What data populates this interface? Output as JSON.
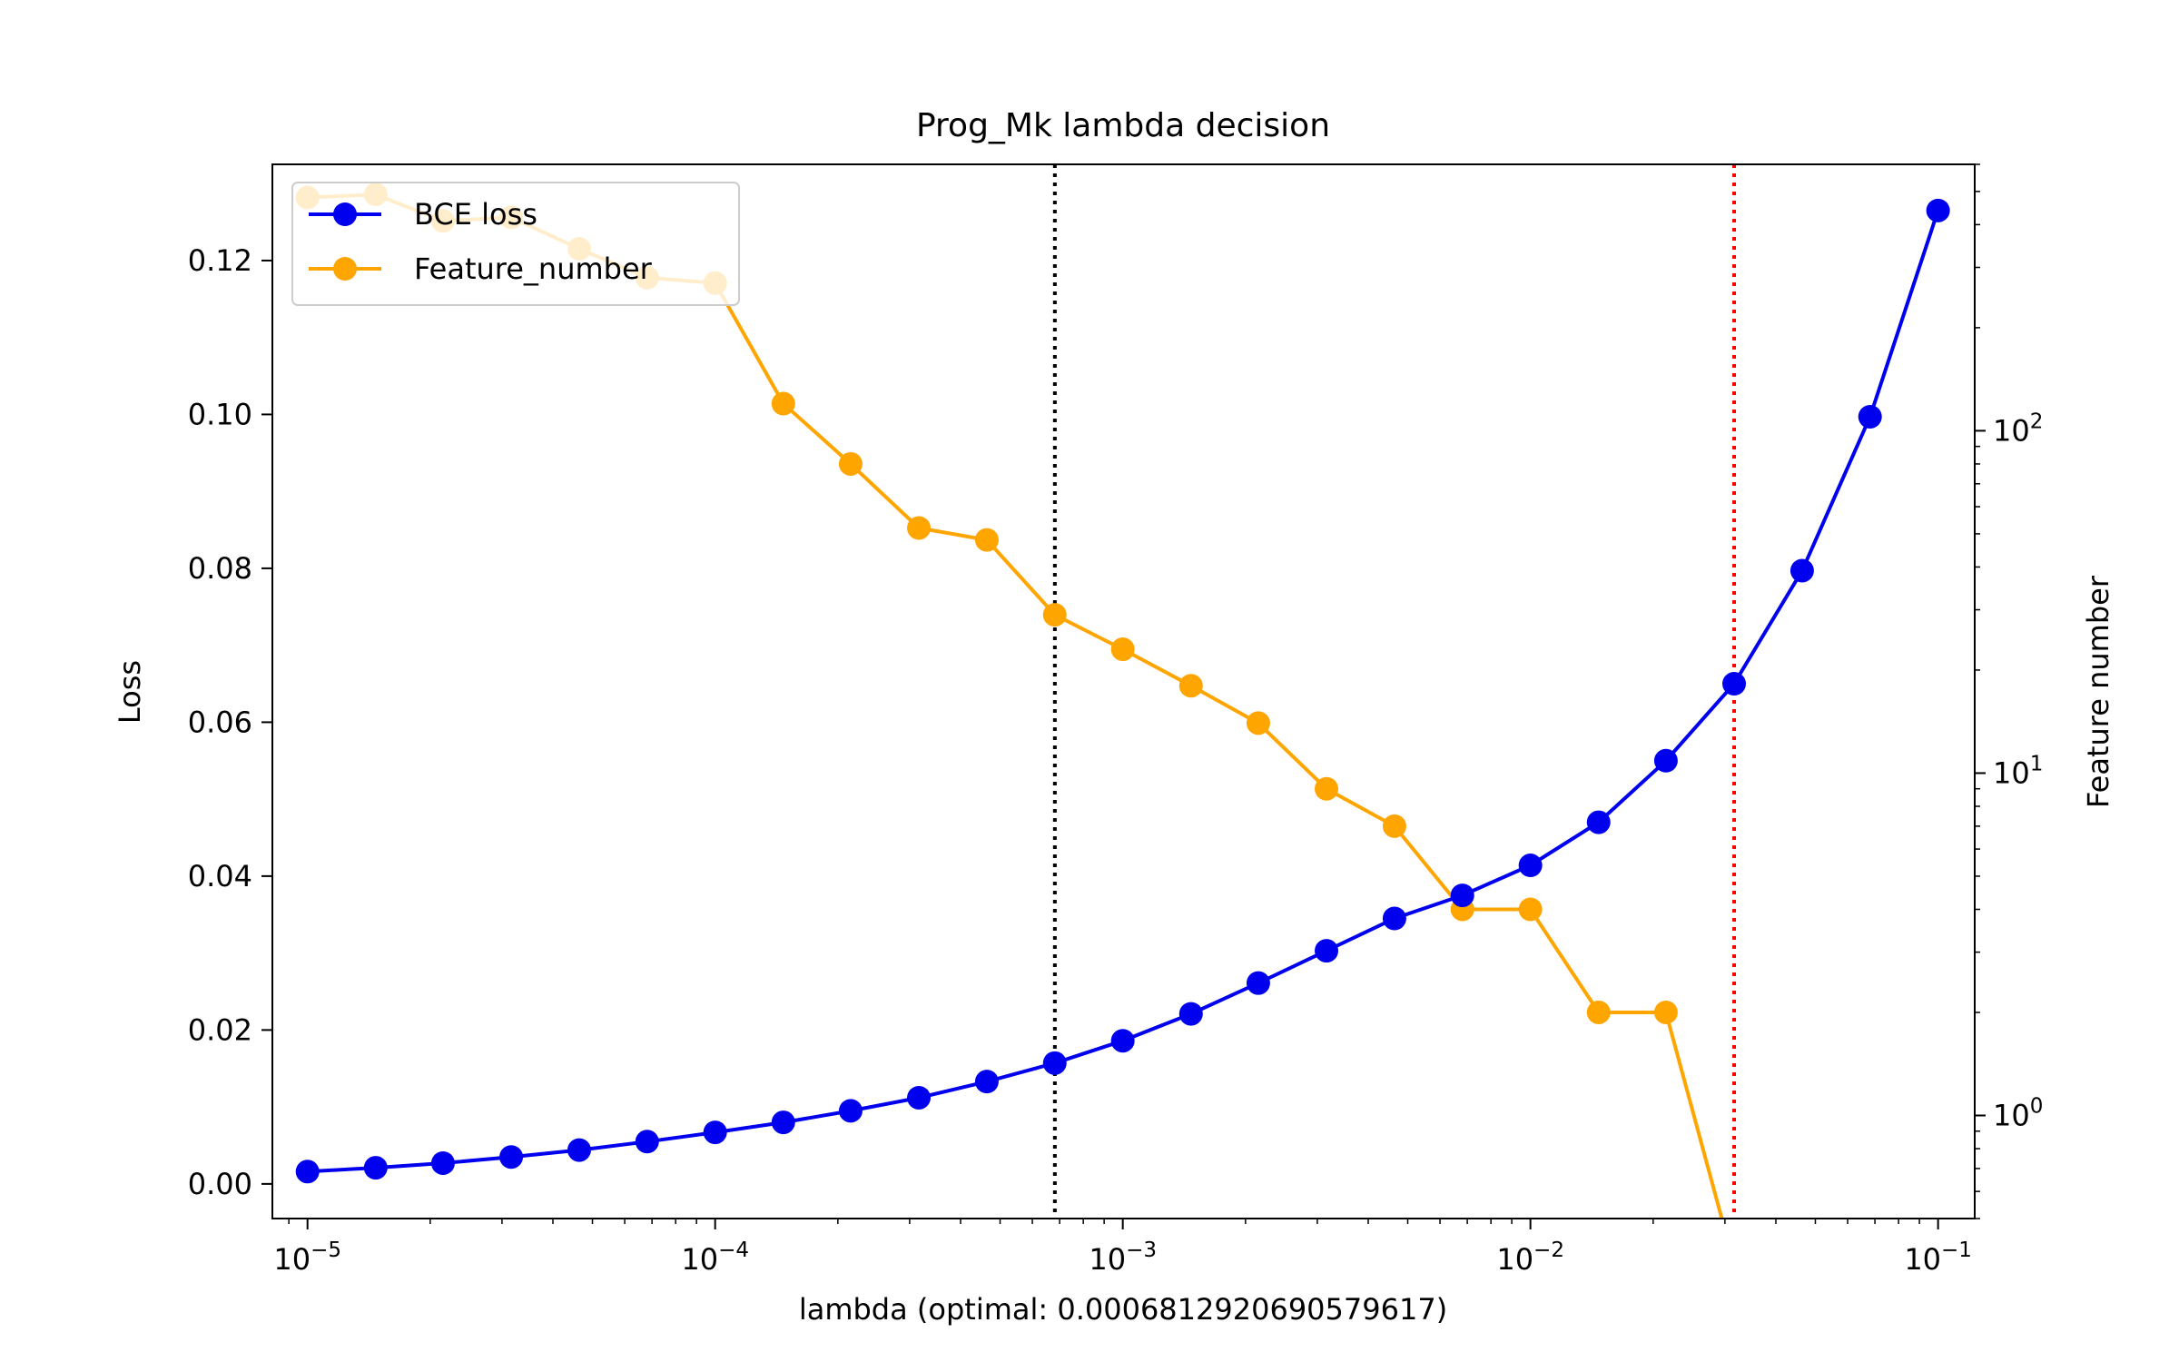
{
  "chart_data": {
    "type": "line",
    "title": "Prog_Mk lambda decision",
    "xlabel": "lambda (optimal: 0.0006812920690579617)",
    "ylabel": "Loss",
    "y2label": "Feature number",
    "xscale": "log",
    "y2scale": "log",
    "xlim": [
      8.2e-06,
      0.123
    ],
    "ylim": [
      -0.0045,
      0.1325
    ],
    "y2lim": [
      0.5,
      600
    ],
    "xticks": [
      {
        "value": 1e-05,
        "base": "10",
        "exp": "−5"
      },
      {
        "value": 0.0001,
        "base": "10",
        "exp": "−4"
      },
      {
        "value": 0.001,
        "base": "10",
        "exp": "−3"
      },
      {
        "value": 0.01,
        "base": "10",
        "exp": "−2"
      },
      {
        "value": 0.1,
        "base": "10",
        "exp": "−1"
      }
    ],
    "yticks": [
      {
        "value": 0.0,
        "label": "0.00"
      },
      {
        "value": 0.02,
        "label": "0.02"
      },
      {
        "value": 0.04,
        "label": "0.04"
      },
      {
        "value": 0.06,
        "label": "0.06"
      },
      {
        "value": 0.08,
        "label": "0.08"
      },
      {
        "value": 0.1,
        "label": "0.10"
      },
      {
        "value": 0.12,
        "label": "0.12"
      }
    ],
    "y2ticks": [
      {
        "value": 1,
        "base": "10",
        "exp": "0"
      },
      {
        "value": 10,
        "base": "10",
        "exp": "1"
      },
      {
        "value": 100,
        "base": "10",
        "exp": "2"
      }
    ],
    "legend_position": "upper-left",
    "grid": false,
    "vlines": [
      {
        "x": 0.0006812920690579617,
        "color": "#000000",
        "style": "dotted"
      },
      {
        "x": 0.0316,
        "color": "#ff0000",
        "style": "dotted"
      }
    ],
    "series": [
      {
        "name": "BCE loss",
        "axis": "left",
        "color": "#0000ee",
        "x": [
          1e-05,
          1.47e-05,
          2.15e-05,
          3.16e-05,
          4.64e-05,
          6.81e-05,
          0.0001,
          0.000147,
          0.000215,
          0.000316,
          0.000464,
          0.000681,
          0.001,
          0.00147,
          0.00215,
          0.00316,
          0.00464,
          0.00681,
          0.01,
          0.0147,
          0.0215,
          0.0316,
          0.0464,
          0.0681,
          0.1
        ],
        "values": [
          0.0016,
          0.0021,
          0.0027,
          0.0035,
          0.0044,
          0.0055,
          0.0067,
          0.008,
          0.0095,
          0.0112,
          0.0133,
          0.0157,
          0.0186,
          0.0221,
          0.0261,
          0.0303,
          0.0345,
          0.0375,
          0.0414,
          0.047,
          0.055,
          0.065,
          0.0797,
          0.0997,
          0.1265
        ]
      },
      {
        "name": "Feature_number",
        "axis": "right",
        "color": "#ffa500",
        "x": [
          1e-05,
          1.47e-05,
          2.15e-05,
          3.16e-05,
          4.64e-05,
          6.81e-05,
          0.0001,
          0.000147,
          0.000215,
          0.000316,
          0.000464,
          0.000681,
          0.001,
          0.00147,
          0.00215,
          0.00316,
          0.00464,
          0.00681,
          0.01,
          0.0147,
          0.0215,
          0.0316
        ],
        "values": [
          480,
          490,
          410,
          420,
          340,
          280,
          270,
          120,
          80,
          52,
          48,
          29,
          23,
          18,
          14,
          9,
          7,
          4,
          4,
          2,
          2,
          0
        ]
      }
    ]
  }
}
